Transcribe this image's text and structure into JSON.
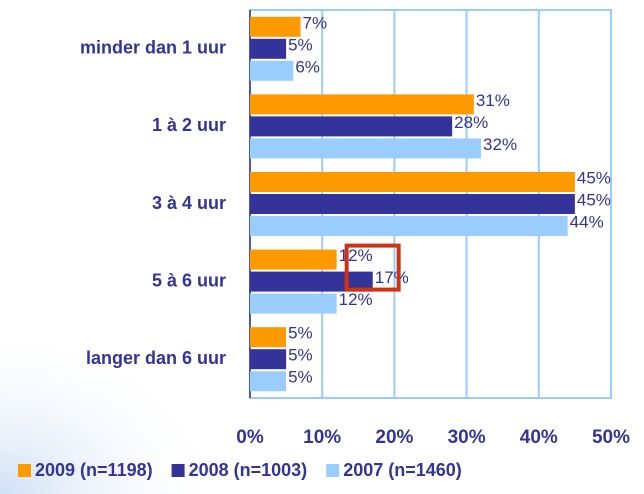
{
  "chart_data": {
    "type": "hbar",
    "categories": [
      "minder dan 1 uur",
      "1 à 2 uur",
      "3 à 4 uur",
      "5 à 6 uur",
      "langer dan 6 uur"
    ],
    "series": [
      {
        "name": "2009 (n=1198)",
        "color": "#ff9900",
        "values": [
          7,
          31,
          45,
          12,
          5
        ],
        "value_labels": [
          "7%",
          "31%",
          "45%",
          "12%",
          "5%"
        ]
      },
      {
        "name": "2008 (n=1003)",
        "color": "#333399",
        "values": [
          5,
          28,
          45,
          17,
          5
        ],
        "value_labels": [
          "5%",
          "28%",
          "45%",
          "17%",
          "5%"
        ]
      },
      {
        "name": "2007 (n=1460)",
        "color": "#99ccff",
        "values": [
          6,
          32,
          44,
          12,
          5
        ],
        "value_labels": [
          "6%",
          "32%",
          "44%",
          "12%",
          "5%"
        ]
      }
    ],
    "xlim": [
      0,
      50
    ],
    "xticks": [
      {
        "value": 0,
        "label": "0%"
      },
      {
        "value": 10,
        "label": "10%"
      },
      {
        "value": 20,
        "label": "20%"
      },
      {
        "value": 30,
        "label": "30%"
      },
      {
        "value": 40,
        "label": "40%"
      },
      {
        "value": 50,
        "label": "50%"
      }
    ],
    "grid": true
  }
}
